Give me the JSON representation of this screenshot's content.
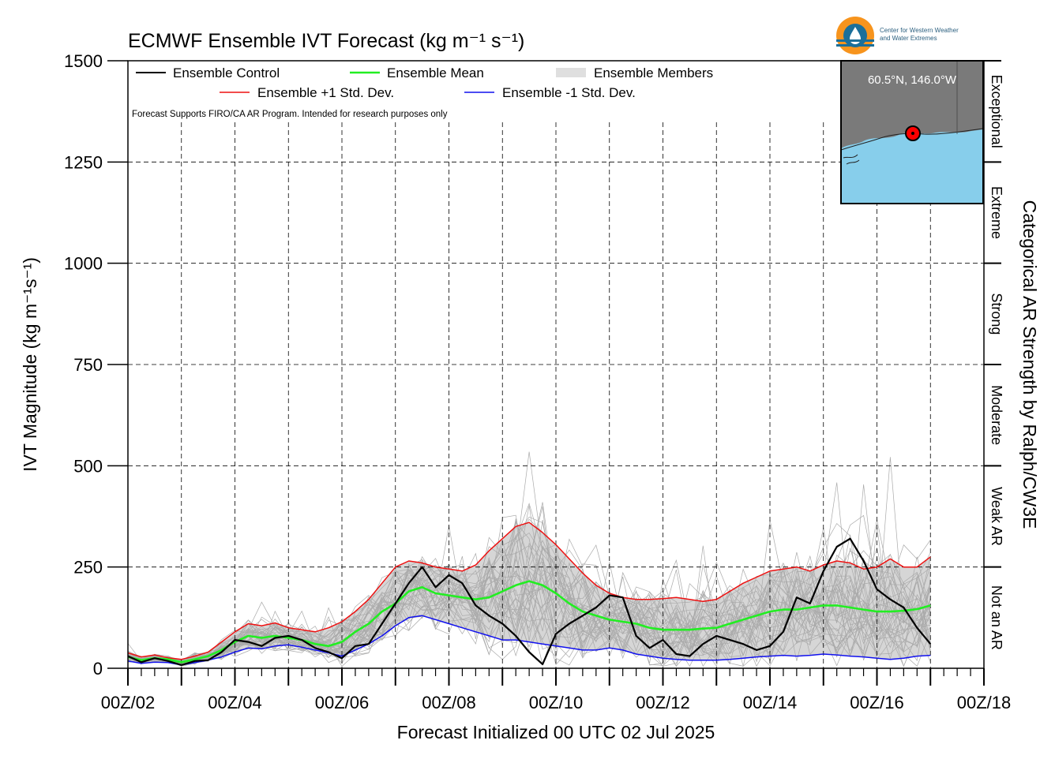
{
  "chart_data": {
    "type": "line",
    "title": "ECMWF Ensemble IVT Forecast (kg m⁻¹ s⁻¹)",
    "xlabel": "Forecast Initialized 00 UTC 02 Jul 2025",
    "ylabel": "IVT Magnitude (kg m⁻¹s⁻¹)",
    "right_axis_label": "Categorical AR Strength by Ralph/CW3E",
    "ylim": [
      0,
      1500
    ],
    "yticks": [
      0,
      250,
      500,
      750,
      1000,
      1250,
      1500
    ],
    "xlim_days": [
      2,
      18
    ],
    "x_tick_labels": [
      "00Z/02",
      "00Z/04",
      "00Z/06",
      "00Z/08",
      "00Z/10",
      "00Z/12",
      "00Z/14",
      "00Z/16",
      "00Z/18"
    ],
    "grid": true,
    "legend_placement": "top-left",
    "note": "Forecast Supports FIRO/CA AR Program. Intended for research purposes only",
    "categories_ar": [
      {
        "label": "Not an AR",
        "range": [
          0,
          250
        ]
      },
      {
        "label": "Weak AR",
        "range": [
          250,
          500
        ]
      },
      {
        "label": "Moderate",
        "range": [
          500,
          750
        ]
      },
      {
        "label": "Strong",
        "range": [
          750,
          1000
        ]
      },
      {
        "label": "Extreme",
        "range": [
          1000,
          1250
        ]
      },
      {
        "label": "Exceptional",
        "range": [
          1250,
          1500
        ]
      }
    ],
    "series": [
      {
        "name": "Ensemble Control",
        "color": "#000000",
        "x": [
          2.0,
          2.25,
          2.5,
          2.75,
          3.0,
          3.25,
          3.5,
          3.75,
          4.0,
          4.25,
          4.5,
          4.75,
          5.0,
          5.25,
          5.5,
          5.75,
          6.0,
          6.25,
          6.5,
          6.75,
          7.0,
          7.25,
          7.5,
          7.75,
          8.0,
          8.25,
          8.5,
          8.75,
          9.0,
          9.25,
          9.5,
          9.75,
          10.0,
          10.25,
          10.5,
          10.75,
          11.0,
          11.25,
          11.5,
          11.75,
          12.0,
          12.25,
          12.5,
          12.75,
          13.0,
          13.25,
          13.5,
          13.75,
          14.0,
          14.25,
          14.5,
          14.75,
          15.0,
          15.25,
          15.5,
          15.75,
          16.0,
          16.25,
          16.5,
          16.75,
          17.0
        ],
        "y": [
          30,
          15,
          25,
          18,
          8,
          18,
          20,
          40,
          70,
          65,
          55,
          75,
          80,
          70,
          50,
          40,
          25,
          55,
          60,
          110,
          160,
          210,
          250,
          200,
          230,
          210,
          155,
          130,
          110,
          80,
          40,
          10,
          85,
          110,
          130,
          150,
          180,
          175,
          80,
          50,
          70,
          35,
          30,
          60,
          80,
          70,
          60,
          45,
          55,
          90,
          175,
          160,
          240,
          300,
          320,
          265,
          195,
          170,
          150,
          100,
          60
        ]
      },
      {
        "name": "Ensemble Mean",
        "color": "#22ee22",
        "x": [
          2.0,
          2.25,
          2.5,
          2.75,
          3.0,
          3.25,
          3.5,
          3.75,
          4.0,
          4.25,
          4.5,
          4.75,
          5.0,
          5.25,
          5.5,
          5.75,
          6.0,
          6.25,
          6.5,
          6.75,
          7.0,
          7.25,
          7.5,
          7.75,
          8.0,
          8.25,
          8.5,
          8.75,
          9.0,
          9.25,
          9.5,
          9.75,
          10.0,
          10.25,
          10.5,
          10.75,
          11.0,
          11.25,
          11.5,
          11.75,
          12.0,
          12.25,
          12.5,
          12.75,
          13.0,
          13.25,
          13.5,
          13.75,
          14.0,
          14.25,
          14.5,
          14.75,
          15.0,
          15.25,
          15.5,
          15.75,
          16.0,
          16.25,
          16.5,
          16.75,
          17.0
        ],
        "y": [
          28,
          20,
          25,
          22,
          15,
          22,
          30,
          45,
          65,
          80,
          75,
          80,
          75,
          70,
          60,
          55,
          65,
          90,
          110,
          140,
          160,
          190,
          200,
          185,
          180,
          175,
          170,
          175,
          190,
          205,
          215,
          205,
          185,
          160,
          140,
          130,
          120,
          115,
          110,
          100,
          95,
          95,
          95,
          98,
          100,
          110,
          120,
          130,
          140,
          145,
          145,
          150,
          155,
          155,
          150,
          145,
          140,
          140,
          142,
          146,
          155
        ]
      },
      {
        "name": "Ensemble +1 Std. Dev.",
        "color": "#ee1111",
        "x": [
          2.0,
          2.25,
          2.5,
          2.75,
          3.0,
          3.25,
          3.5,
          3.75,
          4.0,
          4.25,
          4.5,
          4.75,
          5.0,
          5.25,
          5.5,
          5.75,
          6.0,
          6.25,
          6.5,
          6.75,
          7.0,
          7.25,
          7.5,
          7.75,
          8.0,
          8.25,
          8.5,
          8.75,
          9.0,
          9.25,
          9.5,
          9.75,
          10.0,
          10.25,
          10.5,
          10.75,
          11.0,
          11.25,
          11.5,
          11.75,
          12.0,
          12.25,
          12.5,
          12.75,
          13.0,
          13.25,
          13.5,
          13.75,
          14.0,
          14.25,
          14.5,
          14.75,
          15.0,
          15.25,
          15.5,
          15.75,
          16.0,
          16.25,
          16.5,
          16.75,
          17.0
        ],
        "y": [
          38,
          28,
          33,
          26,
          22,
          30,
          40,
          65,
          90,
          110,
          105,
          112,
          100,
          95,
          90,
          100,
          115,
          140,
          170,
          210,
          250,
          265,
          260,
          250,
          245,
          240,
          255,
          290,
          320,
          350,
          360,
          335,
          305,
          270,
          235,
          205,
          185,
          175,
          170,
          170,
          172,
          175,
          170,
          165,
          170,
          190,
          210,
          225,
          240,
          245,
          250,
          240,
          255,
          265,
          260,
          245,
          250,
          270,
          250,
          250,
          275
        ]
      },
      {
        "name": "Ensemble -1 Std. Dev.",
        "color": "#1111ee",
        "x": [
          2.0,
          2.25,
          2.5,
          2.75,
          3.0,
          3.25,
          3.5,
          3.75,
          4.0,
          4.25,
          4.5,
          4.75,
          5.0,
          5.25,
          5.5,
          5.75,
          6.0,
          6.25,
          6.5,
          6.75,
          7.0,
          7.25,
          7.5,
          7.75,
          8.0,
          8.25,
          8.5,
          8.75,
          9.0,
          9.25,
          9.5,
          9.75,
          10.0,
          10.25,
          10.5,
          10.75,
          11.0,
          11.25,
          11.5,
          11.75,
          12.0,
          12.25,
          12.5,
          12.75,
          13.0,
          13.25,
          13.5,
          13.75,
          14.0,
          14.25,
          14.5,
          14.75,
          15.0,
          15.25,
          15.5,
          15.75,
          16.0,
          16.25,
          16.5,
          16.75,
          17.0
        ],
        "y": [
          18,
          12,
          15,
          14,
          8,
          14,
          20,
          28,
          40,
          50,
          48,
          55,
          58,
          52,
          45,
          38,
          30,
          45,
          60,
          80,
          105,
          125,
          130,
          120,
          110,
          100,
          90,
          80,
          70,
          70,
          65,
          60,
          55,
          50,
          45,
          45,
          50,
          45,
          35,
          30,
          25,
          22,
          20,
          20,
          20,
          22,
          25,
          28,
          30,
          32,
          30,
          32,
          35,
          33,
          30,
          28,
          25,
          22,
          25,
          30,
          32
        ]
      }
    ],
    "members_label": "Ensemble Members",
    "members_color": "#aaaaaa",
    "spread_fill_color": "#d6d6d6",
    "inset_map": {
      "label": "60.5°N, 146.0°W",
      "lat": 60.5,
      "lon": -146.0,
      "land_color": "#7a7a7a",
      "ocean_color": "#87ceeb",
      "marker_color": "#ff0000"
    },
    "logo": {
      "line1": "Center for Western Weather",
      "line2": "and Water Extremes",
      "ring_color": "#f7941d",
      "inner_color": "#1b6f9a"
    }
  }
}
